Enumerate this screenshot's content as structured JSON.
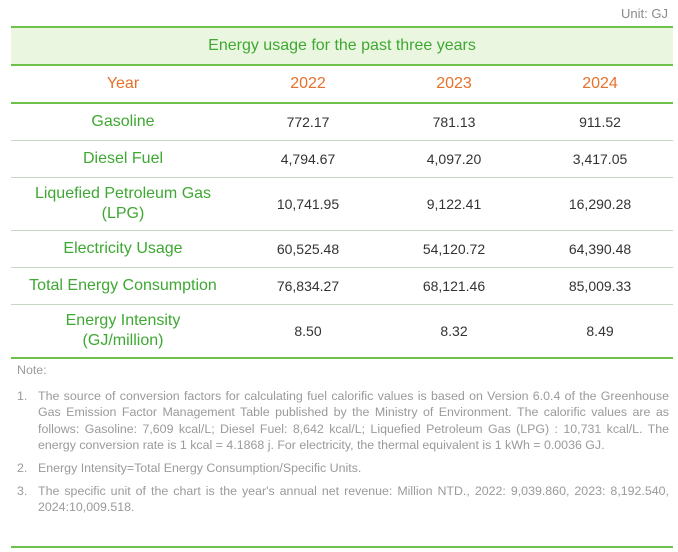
{
  "unit_label": "Unit: GJ",
  "table": {
    "caption": "Energy usage for the past three years",
    "columns": [
      "Year",
      "2022",
      "2023",
      "2024"
    ],
    "rows": [
      {
        "label": "Gasoline",
        "values": [
          "772.17",
          "781.13",
          "911.52"
        ]
      },
      {
        "label": "Diesel Fuel",
        "values": [
          "4,794.67",
          "4,097.20",
          "3,417.05"
        ]
      },
      {
        "label_line1": "Liquefied Petroleum Gas",
        "label_line2": "(LPG)",
        "values": [
          "10,741.95",
          "9,122.41",
          "16,290.28"
        ]
      },
      {
        "label": "Electricity Usage",
        "values": [
          "60,525.48",
          "54,120.72",
          "64,390.48"
        ]
      },
      {
        "label": "Total Energy Consumption",
        "values": [
          "76,834.27",
          "68,121.46",
          "85,009.33"
        ]
      },
      {
        "label_line1": "Energy Intensity",
        "label_line2": "(GJ/million)",
        "values": [
          "8.50",
          "8.32",
          "8.49"
        ]
      }
    ]
  },
  "notes": {
    "title": "Note:",
    "items": [
      {
        "num": "1.",
        "text": "The source of conversion factors for calculating fuel calorific values is based on Version 6.0.4 of the Greenhouse Gas Emission Factor Management Table published by the Ministry of Environment. The calorific values are as follows: Gasoline: 7,609 kcal/L; Diesel Fuel: 8,642 kcal/L; Liquefied Petroleum Gas (LPG) : 10,731 kcal/L. The energy conversion rate is 1 kcal = 4.1868 j. For electricity, the thermal equivalent is 1 kWh = 0.0036 GJ."
      },
      {
        "num": "2.",
        "text": "Energy Intensity=Total Energy Consumption/Specific Units."
      },
      {
        "num": "3.",
        "text": "The specific unit of the chart is the year's annual net revenue: Million NTD., 2022: 9,039.860, 2023: 8,192.540, 2024:10,009.518."
      }
    ]
  },
  "colors": {
    "accent_green": "#3ea832",
    "rule_green": "#6cc24a",
    "caption_bg": "#eaf6e0",
    "header_orange": "#e8702a",
    "note_gray": "#9a9a9a"
  }
}
